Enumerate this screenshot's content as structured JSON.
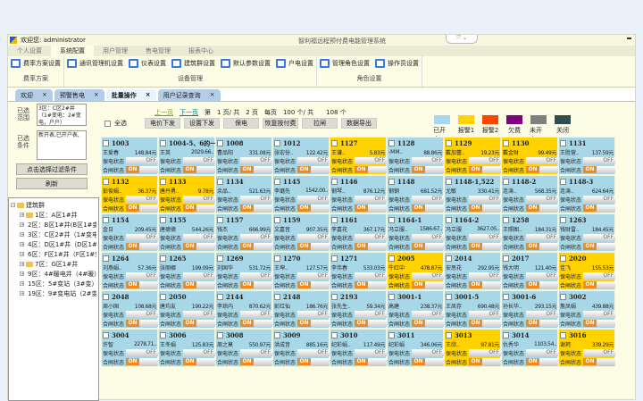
{
  "titlebar": {
    "welcome": "欢迎您: administrator",
    "system_title": "智利福远程预付费电能管理系统",
    "controls": "⤧ ⌄"
  },
  "menu": [
    "个人设置",
    "系统配置",
    "用户管理",
    "售电管理",
    "报表中心"
  ],
  "menu_active": 1,
  "ribbon": [
    {
      "label": "费率方案",
      "items": [
        "费率方案设置"
      ]
    },
    {
      "label": "设备管理",
      "items": [
        "通讯管理机设置",
        "仪表设置",
        "建筑群设置",
        "默认参数设置",
        "户电设置"
      ]
    },
    {
      "label": "角色设置",
      "items": [
        "管理角色设置",
        "操作员设置"
      ]
    }
  ],
  "doc_tabs": [
    {
      "label": "欢迎"
    },
    {
      "label": "预警售电"
    },
    {
      "label": "批量操作"
    },
    {
      "label": "用户记录查询"
    }
  ],
  "doc_tab_active": 2,
  "left": {
    "range_label": "已选范围",
    "range_value": "3区：C区2#井（1#变电：2#变电，户户）",
    "cond_label": "已选条件",
    "cond_value": "新开表,已开户表,",
    "filter_button": "点击选择过滤条件",
    "refresh_button": "刷新",
    "tree_root": "建筑群",
    "tree": [
      "1区：A区1#井",
      "2区：B区1#井(B区1#变)",
      "3区：C区2#井（1#变电）",
      "4区：D区1#井（D区1#变）",
      "6区：F区1#井（F区1#变）",
      "7区：G区1#井",
      "9区：4#暖电井（4#暖）",
      "15区：5#变站（3#变）",
      "19区：9#变电站（2#变）"
    ]
  },
  "pager": {
    "prev": "上一页",
    "next": "下一页",
    "page_text": "第　1 页/ 共　2 页　每页　100 个/ 共　　108 个"
  },
  "toolbar": {
    "select_all": "全选",
    "buttons": [
      "电价下发",
      "设置下发",
      "保电",
      "恢复按付费",
      "拉闸",
      "数据导出"
    ]
  },
  "legend": [
    {
      "label": "已开户",
      "color": "#a6d8ef"
    },
    {
      "label": "报警1",
      "color": "#ffd400"
    },
    {
      "label": "报警2",
      "color": "#ff4500"
    },
    {
      "label": "欠费",
      "color": "#800080"
    },
    {
      "label": "未开户",
      "color": "#808080"
    },
    {
      "label": "关闭",
      "color": "#2f4f4f"
    }
  ],
  "cell_labels": {
    "protect": "保电状态",
    "switch": "合闸状态",
    "off": "OFF",
    "on": "ON"
  },
  "colors": {
    "normal": "#a8d8e8",
    "alarm1": "#ffd200"
  },
  "cells": [
    [
      "1003",
      "王爱春",
      "148.84元",
      "normal"
    ],
    [
      "1004-5、6的一",
      "王英",
      "2029.66..",
      "normal"
    ],
    [
      "1008",
      "曹品阳",
      "331.08元",
      "normal"
    ],
    [
      "1012",
      "张宏份..",
      "122.42元",
      "normal"
    ],
    [
      "1127",
      "王谦..",
      "5.83元",
      "alarm1"
    ],
    [
      "1128",
      "-MM..",
      "88.86元",
      "normal"
    ],
    [
      "1129",
      "戴加蕾..",
      "19.23元",
      "alarm1"
    ],
    [
      "1130",
      "戴金财",
      "99.49元",
      "alarm1"
    ],
    [
      "1131",
      "王胜营..",
      "137.59元",
      "normal"
    ],
    [
      "1132",
      "彭俊娟..",
      "36.37元",
      "alarm1"
    ],
    [
      "1133",
      "唐丹勇..",
      "9.78元",
      "alarm1"
    ],
    [
      "1134",
      "余品..",
      "521.63元",
      "normal"
    ],
    [
      "1145",
      "李璐先",
      "1542.00..",
      "normal"
    ],
    [
      "1146",
      "钢琴..",
      "876.12元",
      "normal"
    ],
    [
      "1148",
      "钢钢",
      "681.52元",
      "normal"
    ],
    [
      "1148-1,522",
      "尤敏",
      "330.41元",
      "normal"
    ],
    [
      "1148-2",
      "连涛..",
      "568.35元",
      "normal"
    ],
    [
      "1148-3",
      "连涛..",
      "624.64元",
      "normal"
    ],
    [
      "1154",
      "金日",
      "209.45元",
      "normal"
    ],
    [
      "1155",
      "唐德德",
      "544.26元",
      "normal"
    ],
    [
      "1157",
      "钱杰",
      "666.99元",
      "normal"
    ],
    [
      "1159",
      "文嘉音",
      "907.35元",
      "normal"
    ],
    [
      "1161",
      "李嘉花",
      "367.17元",
      "normal"
    ],
    [
      "1164-1",
      "冯立服..",
      "1586.67..",
      "normal"
    ],
    [
      "1164-2",
      "冯立服",
      "3627.05..",
      "normal"
    ],
    [
      "1258",
      "王照图..",
      "184.31元",
      "normal"
    ],
    [
      "1263",
      "钱财雷..",
      "184.45元",
      "normal"
    ],
    [
      "1264",
      "刘燕娟..",
      "57.36元",
      "normal"
    ],
    [
      "1265",
      "张丽娜",
      "199.09元",
      "normal"
    ],
    [
      "1269",
      "刘国华",
      "531.72元",
      "normal"
    ],
    [
      "1270",
      "王坤..",
      "127.57元",
      "normal"
    ],
    [
      "1271",
      "李伟春",
      "533.03元",
      "normal"
    ],
    [
      "2005",
      "牛红中",
      "478.87元",
      "alarm1"
    ],
    [
      "2014",
      "安思花",
      "292.95元",
      "normal"
    ],
    [
      "2017",
      "钱大明",
      "121.40元",
      "normal"
    ],
    [
      "2020",
      "佳飞",
      "155.53元",
      "alarm1"
    ],
    [
      "2048",
      "周小国",
      "108.68元",
      "normal"
    ],
    [
      "2050",
      "唐均友",
      "190.22元",
      "normal"
    ],
    [
      "2144",
      "李琼内",
      "870.62元",
      "normal"
    ],
    [
      "2148",
      "彭红仙",
      "186.76元",
      "normal"
    ],
    [
      "2193",
      "张先生..",
      "59.34元",
      "normal"
    ],
    [
      "3001-1",
      "高建",
      "238.37元",
      "normal"
    ],
    [
      "3001-5",
      "王凤存",
      "690.48元",
      "normal"
    ],
    [
      "3001-6",
      "孙长华..",
      "293.15元",
      "normal"
    ],
    [
      "3002",
      "詹凤娟",
      "439.88元",
      "normal"
    ],
    [
      "3004",
      "许智",
      "2278.71..",
      "normal"
    ],
    [
      "3006",
      "王冬娟",
      "125.83元",
      "normal"
    ],
    [
      "3008",
      "周之莫",
      "550.97元",
      "normal"
    ],
    [
      "3009",
      "洪成音",
      "885.16元",
      "normal"
    ],
    [
      "3010",
      "纪彩娟..",
      "117.49元",
      "normal"
    ],
    [
      "3011",
      "纪彩娟",
      "346.06元",
      "normal"
    ],
    [
      "3013",
      "王欣..",
      "97.81元",
      "alarm1"
    ],
    [
      "3014",
      "仇秀华",
      "1103.54..",
      "normal"
    ],
    [
      "3016",
      "谢珂",
      "339.29元",
      "alarm1"
    ]
  ]
}
